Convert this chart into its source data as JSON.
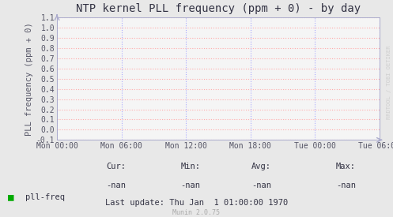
{
  "title": "NTP kernel PLL frequency (ppm + 0) - by day",
  "ylabel": "PLL frequency (ppm + 0)",
  "background_color": "#e8e8e8",
  "plot_background_color": "#f5f5f5",
  "grid_color_h": "#ffaaaa",
  "grid_color_v": "#aaaaff",
  "border_color": "#aaaacc",
  "ylim": [
    -0.1,
    1.1
  ],
  "yticks": [
    -0.1,
    0.0,
    0.1,
    0.2,
    0.3,
    0.4,
    0.5,
    0.6,
    0.7,
    0.8,
    0.9,
    1.0,
    1.1
  ],
  "xtick_labels": [
    "Mon 00:00",
    "Mon 06:00",
    "Mon 12:00",
    "Mon 18:00",
    "Tue 00:00",
    "Tue 06:00"
  ],
  "legend_label": "pll-freq",
  "legend_color": "#00aa00",
  "cur_val": "-nan",
  "min_val": "-nan",
  "avg_val": "-nan",
  "max_val": "-nan",
  "last_update": "Last update: Thu Jan  1 01:00:00 1970",
  "watermark": "RRDTOOL / TOBI OETIKER",
  "munin_version": "Munin 2.0.75",
  "title_fontsize": 10,
  "axis_label_fontsize": 7.5,
  "tick_fontsize": 7,
  "legend_fontsize": 7.5,
  "footer_fontsize": 7.5
}
